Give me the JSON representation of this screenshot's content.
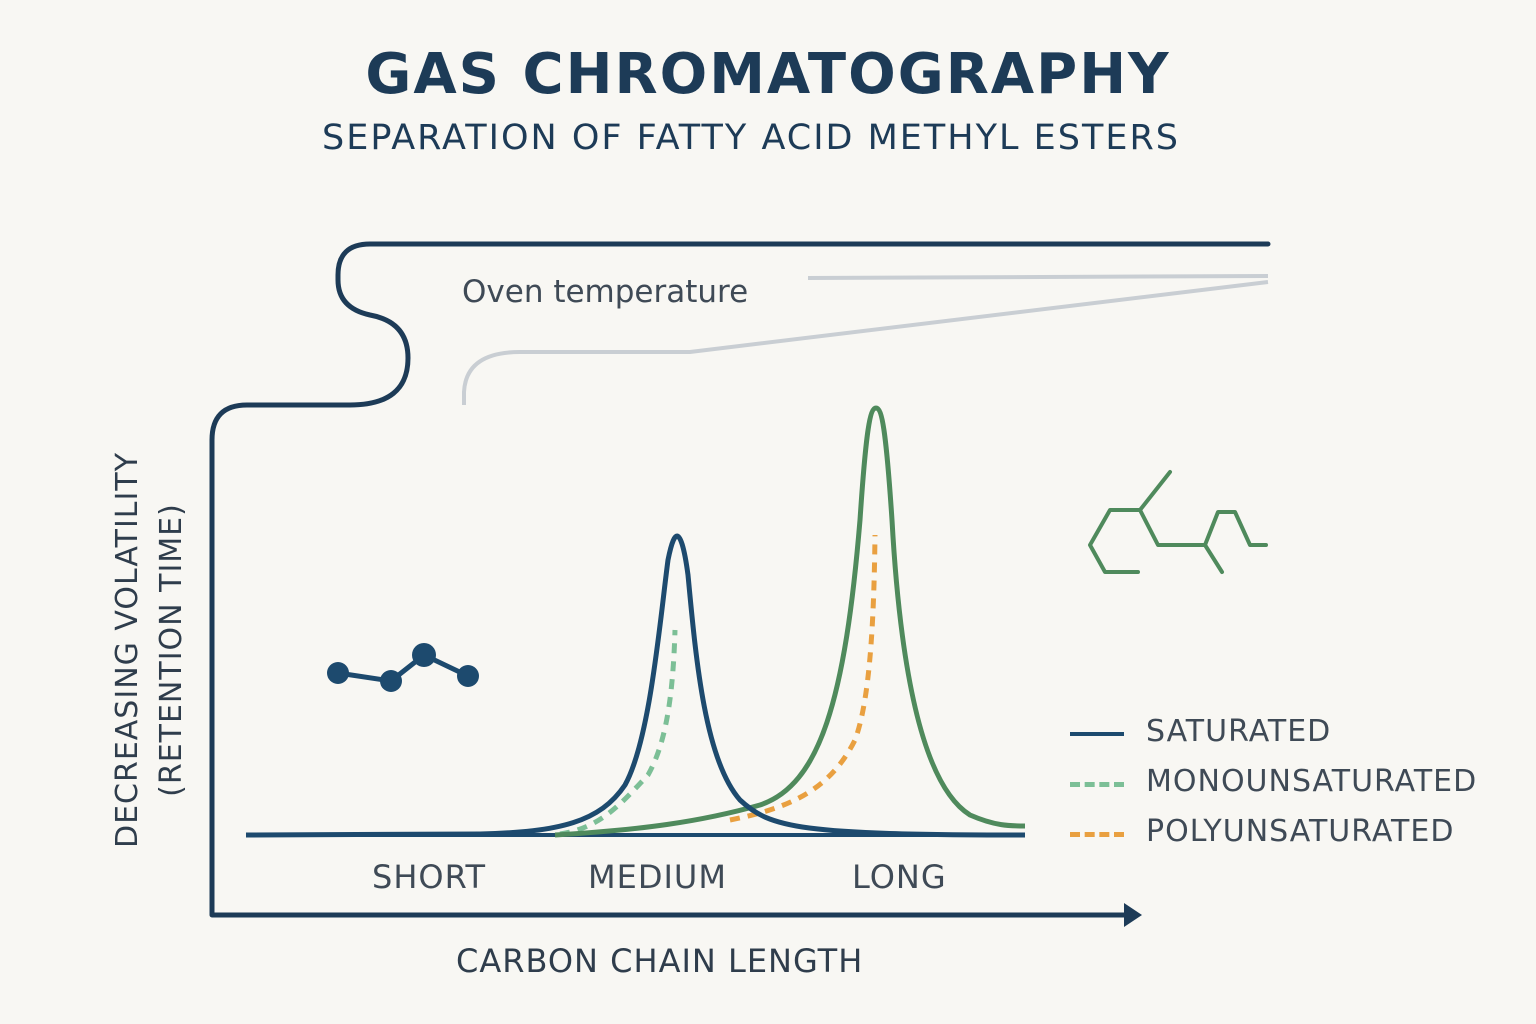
{
  "title": "GAS CHROMATOGRAPHY",
  "subtitle": "SEPARATION OF FATTY ACID METHYL ESTERS",
  "oven_label": "Oven temperature",
  "axis": {
    "x_label": "CARBON CHAIN LENGTH",
    "y_label_line1": "DECREASING VOLATILITY",
    "y_label_line2": "(RETENTION TIME)"
  },
  "categories": [
    "SHORT",
    "MEDIUM",
    "LONG"
  ],
  "legend": [
    {
      "label": "SATURATED",
      "style": "solid",
      "color": "#1d4a6e"
    },
    {
      "label": "MONOUNSATURATED",
      "style": "dotted",
      "color": "#7cbf96"
    },
    {
      "label": "POLYUNSATURATED",
      "style": "dotted",
      "color": "#e9a040"
    }
  ],
  "colors": {
    "navy": "#1d3b57",
    "saturated": "#1d4a6e",
    "long_peak": "#4f8a5c",
    "monounsaturated": "#7cbf96",
    "polyunsaturated": "#e9a040",
    "oven_line": "#c9ced3"
  },
  "icons": [
    "molecule-chain-icon",
    "skeletal-structure-icon"
  ]
}
